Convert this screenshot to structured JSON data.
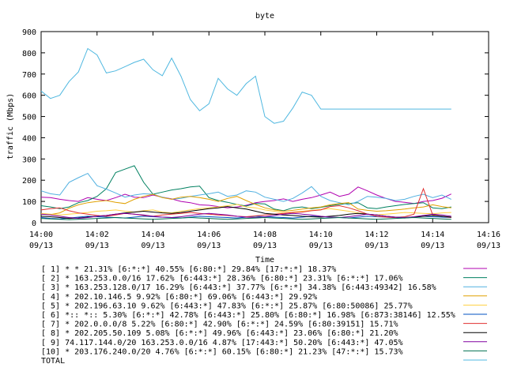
{
  "chart_data": {
    "type": "line",
    "title": "byte",
    "xlabel": "Time",
    "ylabel": "traffic (Mbps)",
    "ylim": [
      0,
      900
    ],
    "xlim": [
      "14:00",
      "14:16"
    ],
    "grid": false,
    "legend_position": "bottom",
    "y_ticks": [
      "0",
      "100",
      "200",
      "300",
      "400",
      "500",
      "600",
      "700",
      "800",
      "900"
    ],
    "x_ticks": [
      {
        "time": "14:00",
        "date": "09/13"
      },
      {
        "time": "14:02",
        "date": "09/13"
      },
      {
        "time": "14:04",
        "date": "09/13"
      },
      {
        "time": "14:06",
        "date": "09/13"
      },
      {
        "time": "14:08",
        "date": "09/13"
      },
      {
        "time": "14:10",
        "date": "09/13"
      },
      {
        "time": "14:12",
        "date": "09/13"
      },
      {
        "time": "14:14",
        "date": "09/13"
      },
      {
        "time": "14:16",
        "date": "09/13"
      }
    ],
    "x": [
      "14:00:00",
      "14:00:20",
      "14:00:40",
      "14:01:00",
      "14:01:20",
      "14:01:40",
      "14:02:00",
      "14:02:20",
      "14:02:40",
      "14:03:00",
      "14:03:20",
      "14:03:40",
      "14:04:00",
      "14:04:20",
      "14:04:40",
      "14:05:00",
      "14:05:20",
      "14:05:40",
      "14:06:00",
      "14:06:20",
      "14:06:40",
      "14:07:00",
      "14:07:20",
      "14:07:40",
      "14:08:00",
      "14:08:20",
      "14:08:40",
      "14:09:00",
      "14:09:20",
      "14:09:40",
      "14:10:00",
      "14:10:20",
      "14:10:40",
      "14:11:00",
      "14:11:20",
      "14:11:40",
      "14:12:00",
      "14:12:20",
      "14:12:40",
      "14:13:00",
      "14:13:20",
      "14:13:40",
      "14:14:00",
      "14:14:20",
      "14:14:40"
    ],
    "series": [
      {
        "name": "[ 1] * * 21.31%  [6:*:*] 40.55% [6:80:*] 29.84% [17:*:*] 18.37%",
        "color": "#b000b0",
        "values": [
          120,
          118,
          110,
          104,
          100,
          118,
          110,
          104,
          118,
          134,
          120,
          118,
          130,
          120,
          112,
          100,
          94,
          84,
          82,
          76,
          70,
          74,
          82,
          94,
          100,
          104,
          112,
          100,
          110,
          118,
          130,
          144,
          124,
          134,
          168,
          150,
          130,
          114,
          100,
          96,
          90,
          100,
          104,
          115,
          135
        ]
      },
      {
        "name": "[ 2] * 163.253.0.0/16 17.62%  [6:443:*] 28.36% [6:80:*] 23.31% [6:*:*] 17.06%",
        "color": "#008060",
        "values": [
          80,
          74,
          66,
          74,
          94,
          104,
          124,
          160,
          236,
          252,
          268,
          190,
          134,
          144,
          154,
          160,
          168,
          172,
          118,
          104,
          96,
          86,
          78,
          90,
          88,
          64,
          56,
          70,
          74,
          66,
          72,
          80,
          86,
          90,
          94,
          70,
          66,
          74,
          80,
          86,
          90,
          94,
          70,
          66,
          74
        ]
      },
      {
        "name": "[ 3] * 163.253.128.0/17 16.29%  [6:443:*] 37.77% [6:*:*] 34.38% [6:443:49342] 16.58%",
        "color": "#50b0e0",
        "values": [
          150,
          136,
          130,
          190,
          212,
          232,
          174,
          158,
          140,
          120,
          130,
          136,
          134,
          120,
          110,
          114,
          124,
          130,
          136,
          144,
          124,
          130,
          150,
          144,
          120,
          110,
          100,
          114,
          140,
          170,
          124,
          104,
          94,
          84,
          100,
          124,
          120,
          114,
          104,
          110,
          124,
          134,
          118,
          130,
          110
        ]
      },
      {
        "name": "[ 4] * 202.10.146.5 9.92%  [6:80:*] 69.06% [6:443:*] 29.92%",
        "color": "#e0a000",
        "values": [
          40,
          38,
          46,
          68,
          84,
          94,
          100,
          104,
          96,
          90,
          110,
          124,
          134,
          118,
          110,
          120,
          124,
          118,
          110,
          100,
          114,
          124,
          104,
          86,
          70,
          60,
          54,
          58,
          64,
          70,
          74,
          84,
          90,
          94,
          64,
          58,
          54,
          56,
          60,
          64,
          70,
          74,
          84,
          76,
          70
        ]
      },
      {
        "name": "[ 5] * 202.196.63.10 9.62%  [6:443:*] 47.83% [6:*:*] 25.87% [6:80:50086] 25.77%",
        "color": "#ffd040",
        "values": [
          44,
          40,
          36,
          40,
          44,
          48,
          54,
          56,
          60,
          54,
          50,
          56,
          60,
          50,
          46,
          54,
          60,
          66,
          70,
          74,
          80,
          86,
          74,
          70,
          60,
          54,
          46,
          50,
          54,
          58,
          62,
          66,
          60,
          54,
          46,
          40,
          36,
          40,
          44,
          48,
          46,
          44,
          42,
          46,
          48
        ]
      },
      {
        "name": "[ 6] *:: *:: 5.30%  [6:*:*] 42.78% [6:443:*] 25.80% [6:80:*] 16.98% [6:873:38146] 12.55%",
        "color": "#0050c0",
        "values": [
          24,
          20,
          18,
          22,
          26,
          30,
          28,
          26,
          24,
          22,
          26,
          30,
          28,
          26,
          24,
          22,
          26,
          30,
          28,
          26,
          24,
          22,
          26,
          30,
          28,
          26,
          24,
          22,
          26,
          30,
          28,
          26,
          24,
          22,
          26,
          30,
          28,
          26,
          24,
          22,
          26,
          30,
          28,
          26,
          24
        ]
      },
      {
        "name": "[ 7] * 202.0.0.0/8 5.22%  [6:80:*] 42.90% [6:*:*] 24.59% [6:80:39151] 15.71%",
        "color": "#e03030",
        "values": [
          60,
          66,
          70,
          56,
          46,
          40,
          34,
          30,
          36,
          44,
          40,
          34,
          30,
          36,
          40,
          44,
          48,
          44,
          40,
          36,
          34,
          30,
          28,
          32,
          36,
          40,
          44,
          48,
          50,
          56,
          60,
          76,
          80,
          70,
          56,
          40,
          30,
          26,
          24,
          28,
          40,
          160,
          36,
          30,
          24
        ]
      },
      {
        "name": "[ 8] * 202.205.50.109 5.08%  [6:*:*] 49.96% [6:443:*] 23.06% [6:80:*] 21.20%",
        "color": "#000000",
        "values": [
          30,
          28,
          24,
          20,
          22,
          26,
          30,
          34,
          40,
          46,
          50,
          54,
          50,
          46,
          44,
          48,
          54,
          60,
          66,
          70,
          76,
          70,
          64,
          54,
          44,
          40,
          36,
          34,
          30,
          28,
          26,
          30,
          34,
          40,
          44,
          40,
          36,
          30,
          26,
          24,
          26,
          30,
          34,
          30,
          26
        ]
      },
      {
        "name": "[ 9] 74.117.144.0/20 163.253.0.0/16 4.87%  [17:443:*] 50.20% [6:443:*] 47.05%",
        "color": "#8000a0",
        "values": [
          40,
          36,
          30,
          24,
          20,
          24,
          30,
          34,
          40,
          44,
          40,
          36,
          30,
          26,
          24,
          28,
          34,
          40,
          44,
          40,
          36,
          30,
          26,
          24,
          28,
          34,
          40,
          44,
          40,
          36,
          30,
          26,
          24,
          28,
          34,
          40,
          36,
          30,
          26,
          24,
          28,
          34,
          40,
          36,
          30
        ]
      },
      {
        "name": "[10] * 203.176.240.0/20 4.76%  [6:*:*] 60.15% [6:80:*] 21.23% [47:*:*] 15.73%",
        "color": "#007050",
        "values": [
          20,
          18,
          16,
          14,
          16,
          18,
          20,
          22,
          24,
          22,
          20,
          18,
          16,
          18,
          20,
          22,
          24,
          22,
          20,
          18,
          16,
          18,
          20,
          22,
          24,
          22,
          20,
          18,
          16,
          18,
          20,
          22,
          24,
          22,
          20,
          18,
          16,
          18,
          20,
          22,
          24,
          22,
          20,
          18,
          16
        ]
      },
      {
        "name": "TOTAL",
        "color": "#50b8e0",
        "values": [
          620,
          585,
          600,
          665,
          710,
          820,
          790,
          705,
          715,
          735,
          755,
          770,
          720,
          692,
          775,
          690,
          580,
          527,
          560,
          680,
          630,
          600,
          655,
          690,
          500,
          468,
          478,
          540,
          615,
          600,
          535,
          535,
          535,
          535,
          535,
          535,
          535,
          535,
          535,
          535,
          535,
          535,
          535,
          535,
          535
        ]
      }
    ]
  }
}
